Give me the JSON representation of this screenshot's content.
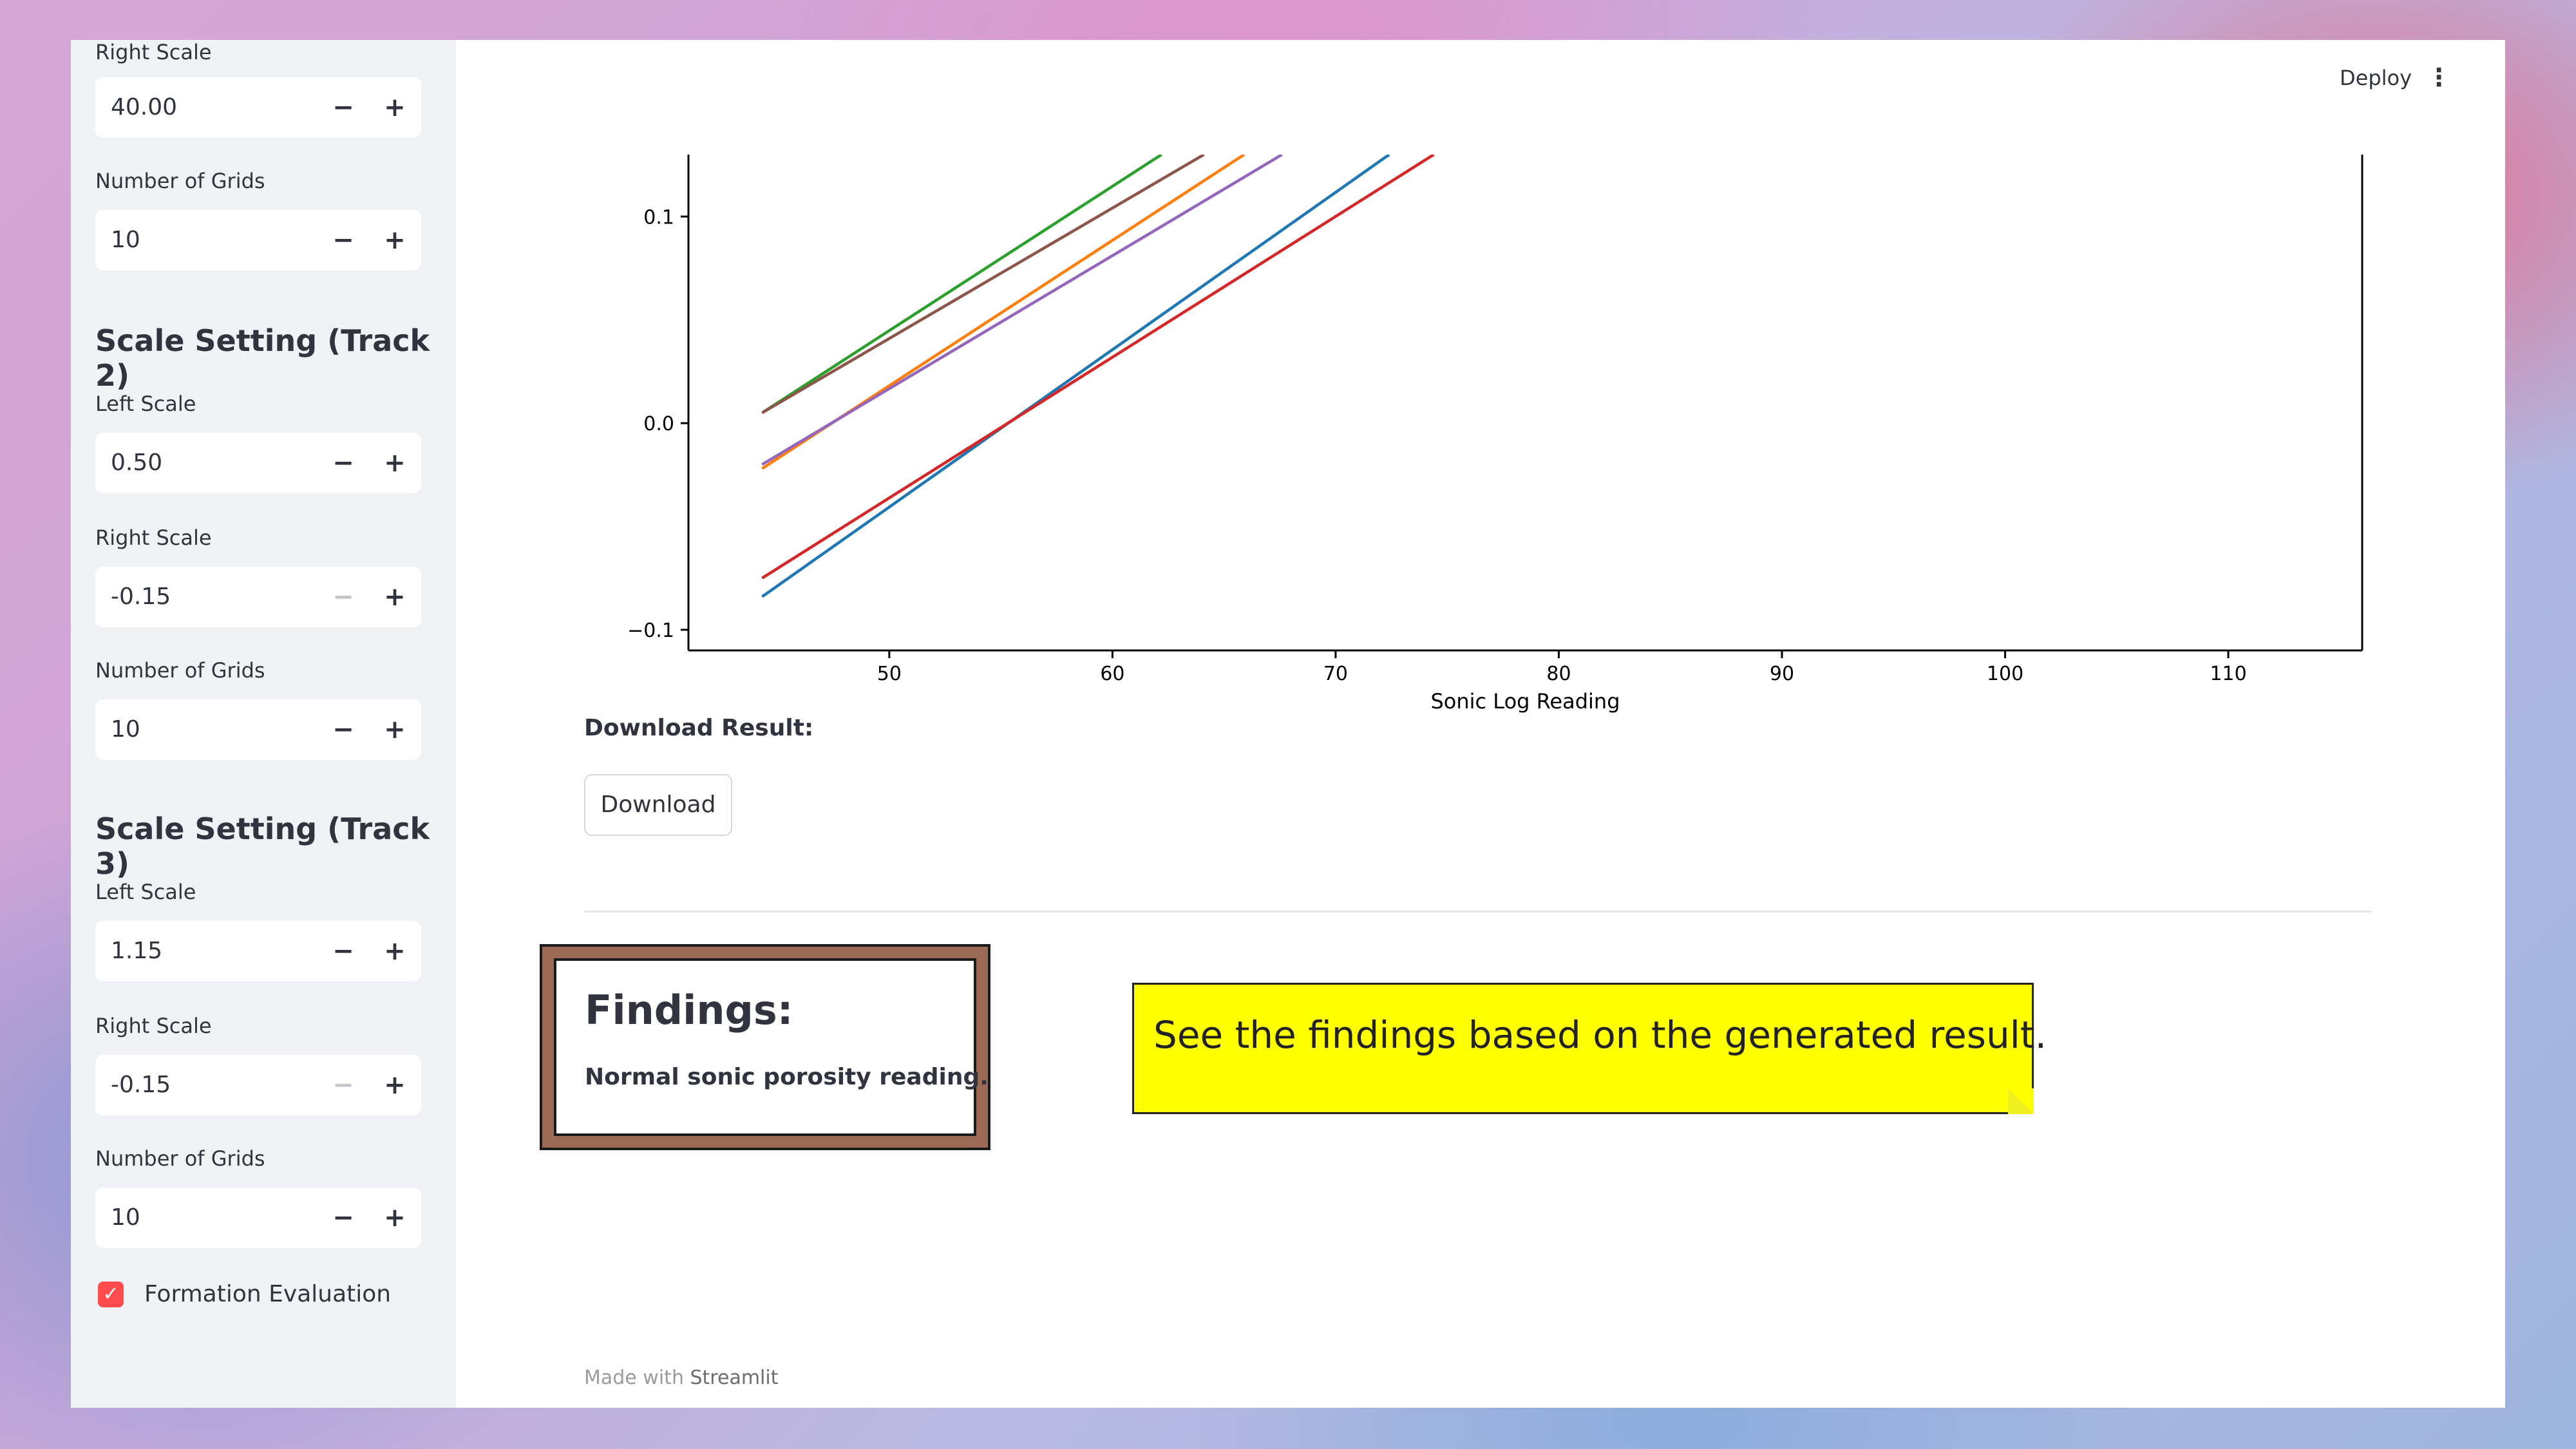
{
  "sidebar": {
    "track1_right_label": "Right Scale",
    "track1_right_value": "40.00",
    "track1_grids_label": "Number of Grids",
    "track1_grids_value": "10",
    "track2_heading": "Scale Setting (Track 2)",
    "track2_left_label": "Left Scale",
    "track2_left_value": "0.50",
    "track2_right_label": "Right Scale",
    "track2_right_value": "-0.15",
    "track2_grids_label": "Number of Grids",
    "track2_grids_value": "10",
    "track3_heading": "Scale Setting (Track 3)",
    "track3_left_label": "Left Scale",
    "track3_left_value": "1.15",
    "track3_right_label": "Right Scale",
    "track3_right_value": "-0.15",
    "track3_grids_label": "Number of Grids",
    "track3_grids_value": "10",
    "checkbox_label": "Formation Evaluation",
    "minus_symbol": "−",
    "plus_symbol": "+"
  },
  "header": {
    "deploy_label": "Deploy",
    "menu_icon": "⋮"
  },
  "main": {
    "download_label": "Download Result:",
    "download_button": "Download",
    "findings_title": "Findings:",
    "findings_text": "Normal sonic porosity reading.",
    "note_text": "See the findings based on the generated result.",
    "footer_prefix": "Made with ",
    "footer_brand": "Streamlit"
  },
  "chart_data": {
    "type": "line",
    "xlabel": "Sonic Log Reading",
    "ylabel": "",
    "xlim": [
      41,
      116
    ],
    "ylim": [
      -0.11,
      0.13
    ],
    "xticks": [
      50,
      60,
      70,
      80,
      90,
      100,
      110
    ],
    "yticks": [
      -0.1,
      0.0,
      0.1
    ],
    "ytick_labels": [
      "−0.1",
      "0.0",
      "0.1"
    ],
    "series": [
      {
        "color": "#2ca02c",
        "x": [
          44.3,
          62.2
        ],
        "y": [
          0.005,
          0.13
        ]
      },
      {
        "color": "#8c564b",
        "x": [
          44.3,
          64.1
        ],
        "y": [
          0.005,
          0.13
        ]
      },
      {
        "color": "#ff7f0e",
        "x": [
          44.3,
          65.9
        ],
        "y": [
          -0.022,
          0.13
        ]
      },
      {
        "color": "#9467bd",
        "x": [
          44.3,
          67.6
        ],
        "y": [
          -0.02,
          0.13
        ]
      },
      {
        "color": "#1f77b4",
        "x": [
          44.3,
          72.4
        ],
        "y": [
          -0.084,
          0.13
        ]
      },
      {
        "color": "#d62728",
        "x": [
          44.3,
          74.4
        ],
        "y": [
          -0.075,
          0.13
        ]
      }
    ]
  }
}
